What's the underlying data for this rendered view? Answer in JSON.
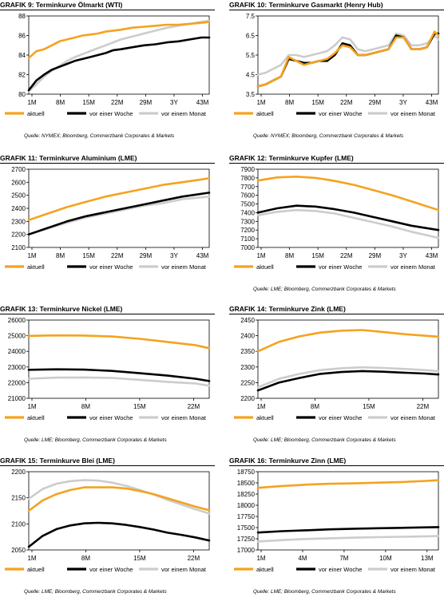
{
  "colors": {
    "aktuell": "#f5a21f",
    "woche": "#000000",
    "monat": "#cccccc"
  },
  "legend_labels": [
    "aktuell",
    "vor einer Woche",
    "vor einem Monat"
  ],
  "charts": [
    {
      "grafik_prefix": "GRAFIK 9:",
      "title": "Terminkurve Ölmarkt (WTI)",
      "source": "Quelle: NYMEX; Bloomberg, Commerzbank Corporates & Markets",
      "chart_data": {
        "type": "line",
        "x_ticks": [
          "1M",
          "8M",
          "15M",
          "22M",
          "29M",
          "3Y",
          "43M"
        ],
        "y_ticks": [
          "80",
          "82",
          "84",
          "86",
          "88"
        ],
        "ylim": [
          80,
          88
        ],
        "x": [
          0,
          2,
          4,
          6,
          8,
          10,
          12,
          14,
          16,
          18,
          20,
          22,
          24,
          27,
          30,
          33,
          36,
          39,
          42,
          45,
          47
        ],
        "series": [
          {
            "name": "aktuell",
            "values": [
              83.7,
              84.4,
              84.6,
              85.0,
              85.4,
              85.6,
              85.8,
              86.0,
              86.1,
              86.2,
              86.4,
              86.5,
              86.6,
              86.8,
              86.9,
              87.0,
              87.1,
              87.1,
              87.2,
              87.3,
              87.4
            ]
          },
          {
            "name": "vor einer Woche",
            "values": [
              80.4,
              81.4,
              82.0,
              82.5,
              82.8,
              83.1,
              83.4,
              83.6,
              83.8,
              84.0,
              84.2,
              84.5,
              84.6,
              84.8,
              85.0,
              85.1,
              85.3,
              85.4,
              85.6,
              85.8,
              85.8
            ]
          },
          {
            "name": "vor einem Monat",
            "values": [
              80.3,
              81.0,
              81.8,
              82.4,
              82.9,
              83.4,
              83.8,
              84.1,
              84.4,
              84.7,
              85.0,
              85.3,
              85.6,
              85.9,
              86.2,
              86.5,
              86.8,
              87.0,
              87.2,
              87.4,
              87.5
            ]
          }
        ]
      }
    },
    {
      "grafik_prefix": "GRAFIK 10:",
      "title": "Terminkurve Gasmarkt (Henry Hub)",
      "source": "Quelle: NYMEX; Bloomberg, Commerzbank Corporates & Markets",
      "chart_data": {
        "type": "line",
        "x_ticks": [
          "1M",
          "8M",
          "15M",
          "22M",
          "29M",
          "3Y",
          "43M"
        ],
        "y_ticks": [
          "3.5",
          "4.5",
          "5.5",
          "6.5",
          "7.5"
        ],
        "ylim": [
          3.5,
          7.5
        ],
        "x": [
          0,
          2,
          4,
          6,
          8,
          10,
          12,
          14,
          16,
          18,
          20,
          22,
          24,
          26,
          28,
          30,
          32,
          34,
          36,
          38,
          40,
          42,
          44,
          46,
          47
        ],
        "series": [
          {
            "name": "aktuell",
            "values": [
              3.9,
              4.0,
              4.2,
              4.4,
              5.4,
              5.2,
              5.0,
              5.1,
              5.2,
              5.3,
              5.6,
              6.0,
              5.9,
              5.5,
              5.5,
              5.6,
              5.7,
              5.8,
              6.4,
              6.4,
              5.8,
              5.8,
              5.9,
              6.7,
              6.5
            ]
          },
          {
            "name": "vor einer Woche",
            "values": [
              3.9,
              4.0,
              4.2,
              4.4,
              5.3,
              5.2,
              5.1,
              5.1,
              5.2,
              5.2,
              5.5,
              6.1,
              6.0,
              5.5,
              5.5,
              5.6,
              5.7,
              5.8,
              6.5,
              6.4,
              5.8,
              5.8,
              5.9,
              6.6,
              6.6
            ]
          },
          {
            "name": "vor einem Monat",
            "values": [
              4.5,
              4.6,
              4.8,
              5.0,
              5.5,
              5.5,
              5.4,
              5.5,
              5.6,
              5.7,
              6.0,
              6.4,
              6.3,
              5.8,
              5.7,
              5.8,
              5.9,
              6.0,
              6.6,
              6.5,
              6.0,
              6.0,
              6.1,
              6.5,
              6.3
            ]
          }
        ]
      }
    },
    {
      "grafik_prefix": "GRAFIK 11:",
      "title": "Terminkurve Aluminium (LME)",
      "source": "",
      "chart_data": {
        "type": "line",
        "x_ticks": [
          "1M",
          "8M",
          "15M",
          "22M",
          "29M",
          "3Y",
          "43M"
        ],
        "y_ticks": [
          "2100",
          "2200",
          "2300",
          "2400",
          "2500",
          "2600",
          "2700"
        ],
        "ylim": [
          2100,
          2700
        ],
        "x": [
          0,
          5,
          10,
          15,
          20,
          25,
          30,
          35,
          40,
          47
        ],
        "series": [
          {
            "name": "aktuell",
            "values": [
              2310,
              2360,
              2410,
              2450,
              2490,
              2520,
              2550,
              2580,
              2600,
              2630
            ]
          },
          {
            "name": "vor einer Woche",
            "values": [
              2200,
              2250,
              2300,
              2340,
              2370,
              2400,
              2430,
              2460,
              2490,
              2520
            ]
          },
          {
            "name": "vor einem Monat",
            "values": [
              2200,
              2245,
              2290,
              2330,
              2360,
              2390,
              2420,
              2440,
              2470,
              2490
            ]
          }
        ]
      }
    },
    {
      "grafik_prefix": "GRAFIK 12:",
      "title": "Terminkurve Kupfer (LME)",
      "source": "Quelle: LME; Bloomberg, Commerzbank Corporates & Markets",
      "chart_data": {
        "type": "line",
        "x_ticks": [
          "1M",
          "8M",
          "15M",
          "22M",
          "29M",
          "3Y",
          "43M"
        ],
        "y_ticks": [
          "7000",
          "7100",
          "7200",
          "7300",
          "7400",
          "7500",
          "7600",
          "7700",
          "7800",
          "7900"
        ],
        "ylim": [
          7000,
          7900
        ],
        "x": [
          0,
          5,
          10,
          15,
          20,
          25,
          30,
          35,
          40,
          47
        ],
        "series": [
          {
            "name": "aktuell",
            "values": [
              7770,
              7805,
              7815,
              7800,
              7765,
              7720,
              7660,
              7600,
              7530,
              7430
            ]
          },
          {
            "name": "vor einer Woche",
            "values": [
              7400,
              7450,
              7480,
              7470,
              7440,
              7400,
              7350,
              7300,
              7250,
              7200
            ]
          },
          {
            "name": "vor einem Monat",
            "values": [
              7370,
              7410,
              7430,
              7420,
              7390,
              7340,
              7290,
              7240,
              7180,
              7110
            ]
          }
        ]
      }
    },
    {
      "grafik_prefix": "GRAFIK 13:",
      "title": "Terminkurve Nickel (LME)",
      "source": "Quelle: LME; Bloomberg, Commerzbank Corporates & Markets",
      "chart_data": {
        "type": "line",
        "x_ticks": [
          "1M",
          "8M",
          "15M",
          "22M"
        ],
        "y_ticks": [
          "21000",
          "22000",
          "23000",
          "24000",
          "25000",
          "26000"
        ],
        "ylim": [
          21000,
          26000
        ],
        "x": [
          0,
          4,
          8,
          12,
          16,
          20,
          24,
          26
        ],
        "series": [
          {
            "name": "aktuell",
            "values": [
              24990,
              25020,
              25010,
              24950,
              24800,
              24600,
              24400,
              24200
            ]
          },
          {
            "name": "vor einer Woche",
            "values": [
              22820,
              22850,
              22830,
              22750,
              22600,
              22450,
              22250,
              22100
            ]
          },
          {
            "name": "vor einem Monat",
            "values": [
              22250,
              22320,
              22330,
              22300,
              22180,
              22050,
              21950,
              21800
            ]
          }
        ]
      }
    },
    {
      "grafik_prefix": "GRAFIK 14:",
      "title": "Terminkurve Zink (LME)",
      "source": "Quelle: LME; Bloomberg, Commerzbank Corporates & Markets",
      "chart_data": {
        "type": "line",
        "x_ticks": [
          "1M",
          "8M",
          "15M",
          "22M"
        ],
        "y_ticks": [
          "2200",
          "2250",
          "2300",
          "2350",
          "2400",
          "2450"
        ],
        "ylim": [
          2200,
          2450
        ],
        "x": [
          0,
          3,
          6,
          9,
          12,
          15,
          18,
          21,
          24,
          26
        ],
        "series": [
          {
            "name": "aktuell",
            "values": [
              2350,
              2380,
              2398,
              2410,
              2416,
              2418,
              2412,
              2405,
              2400,
              2397
            ]
          },
          {
            "name": "vor einer Woche",
            "values": [
              2225,
              2250,
              2265,
              2278,
              2284,
              2287,
              2285,
              2282,
              2279,
              2276
            ]
          },
          {
            "name": "vor einem Monat",
            "values": [
              2235,
              2262,
              2278,
              2290,
              2296,
              2299,
              2297,
              2294,
              2290,
              2287
            ]
          }
        ]
      }
    },
    {
      "grafik_prefix": "GRAFIK 15:",
      "title": "Terminkurve Blei (LME)",
      "source": "Quelle: LME; Bloomberg, Commerzbank Corporates & Markets",
      "chart_data": {
        "type": "line",
        "x_ticks": [
          "1M",
          "8M",
          "15M",
          "22M"
        ],
        "y_ticks": [
          "2050",
          "2100",
          "2150",
          "2200"
        ],
        "ylim": [
          2050,
          2200
        ],
        "x": [
          0,
          2,
          4,
          6,
          8,
          10,
          12,
          14,
          16,
          18,
          20,
          22,
          24,
          26
        ],
        "series": [
          {
            "name": "aktuell",
            "values": [
              2125,
              2145,
              2157,
              2165,
              2170,
              2170,
              2170,
              2168,
              2163,
              2157,
              2149,
              2141,
              2133,
              2126
            ]
          },
          {
            "name": "vor einer Woche",
            "values": [
              2056,
              2077,
              2090,
              2097,
              2101,
              2102,
              2101,
              2098,
              2094,
              2089,
              2083,
              2079,
              2074,
              2068
            ]
          },
          {
            "name": "vor einem Monat",
            "values": [
              2148,
              2167,
              2177,
              2182,
              2184,
              2183,
              2179,
              2173,
              2165,
              2156,
              2146,
              2137,
              2128,
              2120
            ]
          }
        ]
      }
    },
    {
      "grafik_prefix": "GRAFIK 16:",
      "title": "Terminkurve Zinn (LME)",
      "source": "Quelle: LME; Bloomberg, Commerzbank Corporates & Markets",
      "chart_data": {
        "type": "line",
        "x_ticks": [
          "1M",
          "4M",
          "7M",
          "10M",
          "13M"
        ],
        "y_ticks": [
          "17000",
          "17250",
          "17500",
          "17750",
          "18000",
          "18250",
          "18500",
          "18750"
        ],
        "ylim": [
          17000,
          18750
        ],
        "x": [
          0,
          2,
          4,
          6,
          8,
          10,
          12,
          14,
          15
        ],
        "series": [
          {
            "name": "aktuell",
            "values": [
              18390,
              18430,
              18460,
              18480,
              18490,
              18505,
              18520,
              18545,
              18560
            ]
          },
          {
            "name": "vor einer Woche",
            "values": [
              17390,
              17420,
              17440,
              17460,
              17475,
              17485,
              17495,
              17505,
              17510
            ]
          },
          {
            "name": "vor einem Monat",
            "values": [
              17190,
              17220,
              17245,
              17260,
              17275,
              17285,
              17295,
              17305,
              17310
            ]
          }
        ]
      }
    }
  ]
}
